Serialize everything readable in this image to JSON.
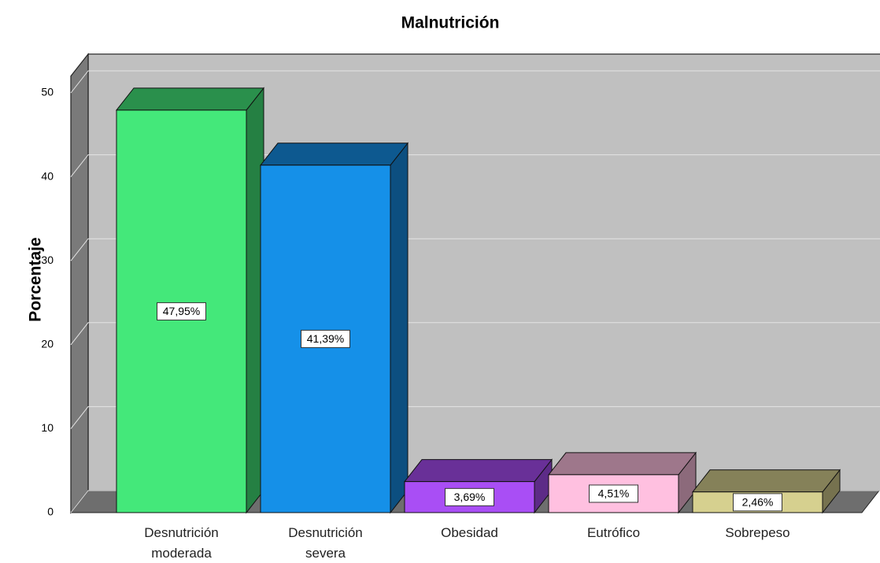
{
  "chart_data": {
    "type": "bar3d",
    "title": "Malnutrición",
    "y_label": "Porcentaje",
    "categories": [
      "Desnutrición moderada",
      "Desnutrición severa",
      "Obesidad",
      "Eutrófico",
      "Sobrepeso"
    ],
    "values": [
      47.95,
      41.39,
      3.69,
      4.51,
      2.46
    ],
    "value_labels": [
      "47,95%",
      "41,39%",
      "3,69%",
      "4,51%",
      "2,46%"
    ],
    "colors": [
      "#44e87a",
      "#1590e8",
      "#a94ef5",
      "#ffc0e0",
      "#d6d08f"
    ],
    "ylim": [
      0,
      52
    ],
    "yticks": [
      0,
      10,
      20,
      30,
      40,
      50
    ],
    "grid": true
  }
}
